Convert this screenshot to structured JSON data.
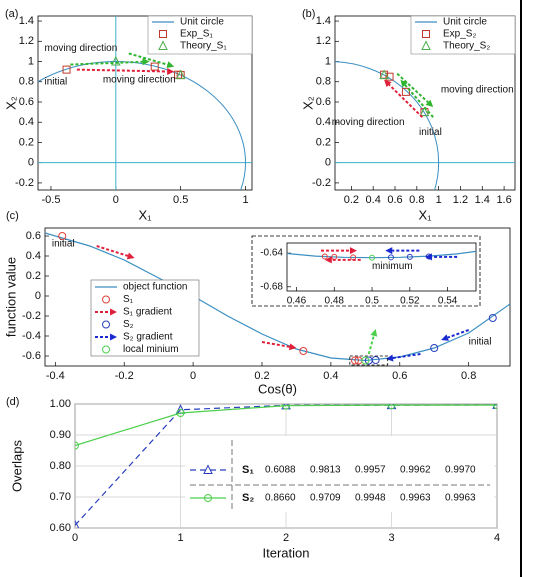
{
  "chart_data": [
    {
      "type": "scatter",
      "title": "(a)",
      "xlabel": "X₁",
      "ylabel": "X₂",
      "xlim": [
        -0.6,
        1.05
      ],
      "ylim": [
        -0.27,
        1.45
      ],
      "xticks": [
        -0.5,
        0,
        0.5,
        1
      ],
      "yticks": [
        -0.2,
        0,
        0.2,
        0.4,
        0.6,
        0.8,
        1,
        1.2,
        1.4
      ],
      "series": [
        {
          "name": "Unit circle",
          "color": "#3b8fc2",
          "radius": 1
        },
        {
          "name": "Exp_S₁",
          "color": "#c0392b",
          "marker": "square",
          "x": [
            -0.38,
            0.3,
            0.48,
            0.5
          ],
          "y": [
            0.92,
            0.95,
            0.87,
            0.866
          ]
        },
        {
          "name": "Theory_S₁",
          "color": "#4cae4c",
          "marker": "triangle",
          "x": [
            0.0,
            0.5
          ],
          "y": [
            1.0,
            0.866
          ]
        }
      ],
      "annotations": [
        {
          "text": "moving direction",
          "color": "#2fb52f"
        },
        {
          "text": "moving direction",
          "color": "#e0203a"
        },
        {
          "text": "initial",
          "color": "#111111"
        }
      ]
    },
    {
      "type": "scatter",
      "title": "(b)",
      "xlabel": "X₁",
      "ylabel": "X₂",
      "xlim": [
        0.05,
        1.7
      ],
      "ylim": [
        -0.27,
        1.45
      ],
      "xticks": [
        0.2,
        0.4,
        0.6,
        0.8,
        1,
        1.2,
        1.4,
        1.6
      ],
      "yticks": [
        -0.2,
        0,
        0.2,
        0.4,
        0.6,
        0.8,
        1,
        1.2,
        1.4
      ],
      "series": [
        {
          "name": "Unit circle",
          "color": "#3b8fc2",
          "radius": 1
        },
        {
          "name": "Exp_S₂",
          "color": "#c0392b",
          "marker": "square",
          "x": [
            0.87,
            0.7,
            0.55,
            0.5
          ],
          "y": [
            0.5,
            0.7,
            0.85,
            0.87
          ]
        },
        {
          "name": "Theory_S₂",
          "color": "#4cae4c",
          "marker": "triangle",
          "x": [
            0.87,
            0.5
          ],
          "y": [
            0.5,
            0.866
          ]
        }
      ],
      "annotations": [
        {
          "text": "moving direction",
          "color": "#2fb52f"
        },
        {
          "text": "moving direction",
          "color": "#e0203a"
        },
        {
          "text": "initial",
          "color": "#111111"
        }
      ]
    },
    {
      "type": "line",
      "title": "(c)",
      "xlabel": "Cos(θ)",
      "ylabel": "function value",
      "xlim": [
        -0.43,
        0.92
      ],
      "ylim": [
        -0.7,
        0.68
      ],
      "xticks": [
        -0.4,
        -0.2,
        0,
        0.2,
        0.4,
        0.6,
        0.8
      ],
      "yticks": [
        -0.6,
        -0.4,
        -0.2,
        0,
        0.2,
        0.4,
        0.6
      ],
      "series": [
        {
          "name": "object function",
          "color": "#3b8fc2",
          "x": [
            -0.43,
            -0.3,
            -0.2,
            -0.1,
            0,
            0.1,
            0.2,
            0.3,
            0.4,
            0.5,
            0.6,
            0.7,
            0.8,
            0.92
          ],
          "y": [
            0.63,
            0.5,
            0.36,
            0.18,
            0.0,
            -0.2,
            -0.38,
            -0.53,
            -0.62,
            -0.645,
            -0.61,
            -0.52,
            -0.37,
            -0.08
          ]
        },
        {
          "name": "S₁",
          "color": "#e0403a",
          "marker": "circle",
          "x": [
            -0.38,
            0.32,
            0.47,
            0.48
          ],
          "y": [
            0.6,
            -0.55,
            -0.645,
            -0.645
          ]
        },
        {
          "name": "S₁ gradient",
          "color": "#e0203a",
          "marker": "arrow"
        },
        {
          "name": "S₂",
          "color": "#2a3fc0",
          "marker": "circle",
          "x": [
            0.87,
            0.7,
            0.53,
            0.51
          ],
          "y": [
            -0.22,
            -0.52,
            -0.64,
            -0.645
          ]
        },
        {
          "name": "S₂ gradient",
          "color": "#1a2ad0",
          "marker": "arrow"
        },
        {
          "name": "local minium",
          "color": "#4cd04c",
          "marker": "circle",
          "x": [
            0.5
          ],
          "y": [
            -0.645
          ]
        }
      ],
      "annotations": [
        {
          "text": "initial",
          "color": "#111111"
        },
        {
          "text": "initial",
          "color": "#111111"
        }
      ],
      "inset": {
        "xlim": [
          0.455,
          0.555
        ],
        "ylim": [
          -0.685,
          -0.628
        ],
        "xticks": [
          0.46,
          0.48,
          0.5,
          0.52,
          0.54
        ],
        "yticks": [
          -0.64,
          -0.68
        ],
        "curve": {
          "x": [
            0.455,
            0.47,
            0.485,
            0.5,
            0.515,
            0.53,
            0.545,
            0.555
          ],
          "y": [
            -0.6405,
            -0.6435,
            -0.645,
            -0.6455,
            -0.645,
            -0.6435,
            -0.641,
            -0.638
          ]
        },
        "s1": {
          "x": [
            0.475,
            0.48,
            0.49
          ],
          "y": [
            -0.644,
            -0.6445,
            -0.645
          ]
        },
        "s2": {
          "x": [
            0.51,
            0.52,
            0.53
          ],
          "y": [
            -0.645,
            -0.6445,
            -0.644
          ]
        },
        "minimum": {
          "x": [
            0.5
          ],
          "y": [
            -0.6455
          ]
        },
        "annotation": "minimum"
      }
    },
    {
      "type": "line",
      "title": "(d)",
      "xlabel": "Iteration",
      "ylabel": "Overlaps",
      "xlim": [
        0,
        4
      ],
      "ylim": [
        0.6,
        1.0
      ],
      "xticks": [
        0,
        1,
        2,
        3,
        4
      ],
      "yticks": [
        {
          "value": 0.6,
          "label": "0.60"
        },
        {
          "value": 0.7,
          "label": "0.70"
        },
        {
          "value": 0.8,
          "label": "0.80"
        },
        {
          "value": 0.9,
          "label": "0.90"
        },
        {
          "value": 1.0,
          "label": "1.00"
        }
      ],
      "grid": true,
      "series": [
        {
          "name": "S₁",
          "color": "#2a3fc0",
          "marker": "triangle",
          "dash": true,
          "x": [
            0,
            1,
            2,
            3,
            4
          ],
          "values": [
            0.6088,
            0.9813,
            0.9957,
            0.9962,
            0.997
          ],
          "value_labels": [
            "0.6088",
            "0.9813",
            "0.9957",
            "0.9962",
            "0.9970"
          ]
        },
        {
          "name": "S₂",
          "color": "#4cd04c",
          "marker": "circle",
          "dash": false,
          "x": [
            0,
            1,
            2,
            3,
            4
          ],
          "values": [
            0.866,
            0.9709,
            0.9948,
            0.9963,
            0.9963
          ],
          "value_labels": [
            "0.8660",
            "0.9709",
            "0.9948",
            "0.9963",
            "0.9963"
          ]
        }
      ]
    }
  ]
}
